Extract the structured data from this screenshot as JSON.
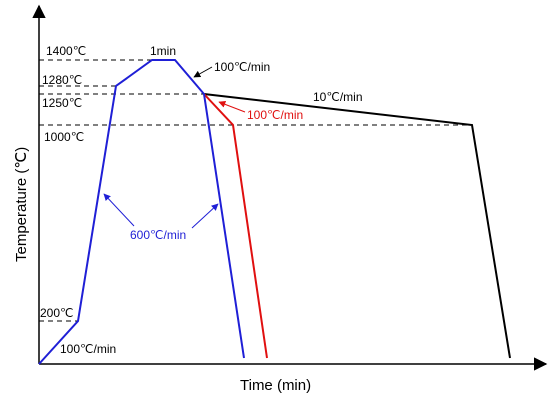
{
  "figure": {
    "type": "heat-treatment temperature–time schedule",
    "x_axis_label": "Time (min)",
    "y_axis_label": "Temperature (℃)",
    "temperature_levels": [
      {
        "id": "t1400",
        "label": "1400℃"
      },
      {
        "id": "t1280",
        "label": "1280℃"
      },
      {
        "id": "t1250",
        "label": "1250℃"
      },
      {
        "id": "t1000",
        "label": "1000℃"
      },
      {
        "id": "t200",
        "label": "200℃"
      }
    ],
    "annotations": {
      "hold": "1min",
      "rate_100_black": "100℃/min",
      "rate_10": "10℃/min",
      "rate_100_red": "100℃/min",
      "rate_600": "600℃/min",
      "rate_100_start": "100℃/min"
    },
    "curves": [
      {
        "name": "blue",
        "color": "#1f1fd6"
      },
      {
        "name": "red",
        "color": "#e01010"
      },
      {
        "name": "black",
        "color": "#000000"
      }
    ]
  }
}
